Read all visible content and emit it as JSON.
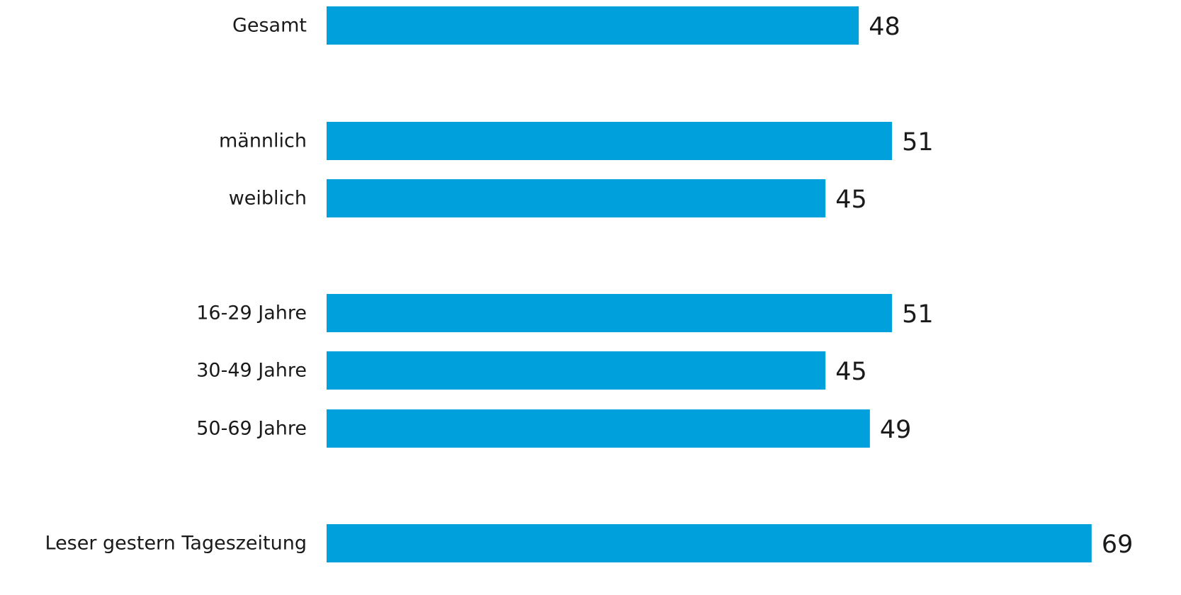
{
  "chart_data": {
    "type": "bar",
    "orientation": "horizontal",
    "categories": [
      "Gesamt",
      "männlich",
      "weiblich",
      "16-29 Jahre",
      "30-49 Jahre",
      "50-69 Jahre",
      "Leser gestern Tageszeitung"
    ],
    "values": [
      48,
      51,
      45,
      51,
      45,
      49,
      69
    ],
    "value_labels": [
      "48",
      "51",
      "45",
      "51",
      "45",
      "49",
      "69"
    ],
    "groups": [
      [
        "Gesamt"
      ],
      [
        "männlich",
        "weiblich"
      ],
      [
        "16-29 Jahre",
        "30-49 Jahre",
        "50-69 Jahre"
      ],
      [
        "Leser gestern Tageszeitung"
      ]
    ],
    "xlim": [
      0,
      69
    ],
    "grid": false,
    "legend": "none",
    "title": "",
    "xlabel": "",
    "ylabel": "",
    "colors": {
      "bar": "#00A0DC",
      "text": "#1a1a1a"
    }
  }
}
